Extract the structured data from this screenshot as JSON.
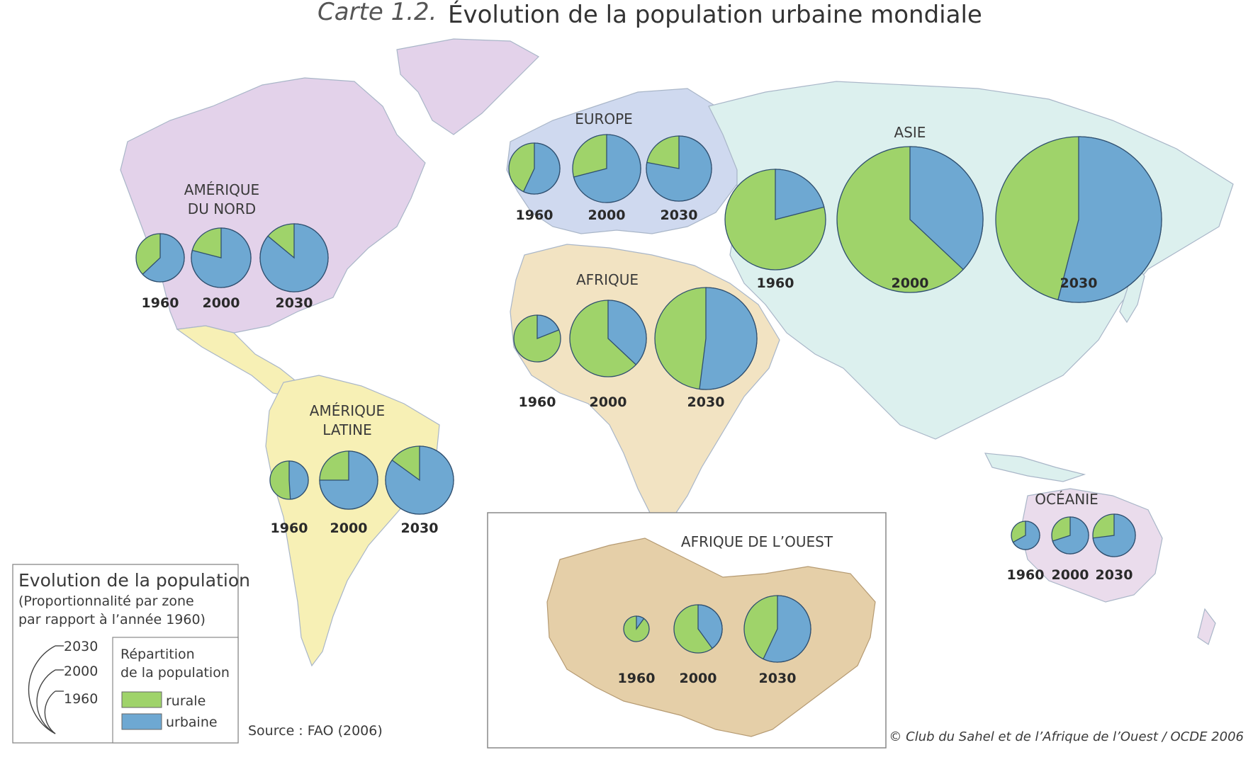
{
  "title": {
    "prefix": "Carte 1.2.",
    "main": "Évolution de la population urbaine mondiale"
  },
  "colors": {
    "rural": "#9fd36a",
    "urbain": "#6ea8d2",
    "pie_stroke": "#2f4f6f",
    "north_america": "#e3d2ea",
    "latin_america": "#f7f0b5",
    "europe": "#cfd9ef",
    "africa": "#f2e3c2",
    "west_africa": "#e5cfa8",
    "asia": "#dcf0ee",
    "oceania": "#eadcec"
  },
  "regions": [
    {
      "name": "AMÉRIQUE DU NORD",
      "lines": [
        "AMÉRIQUE",
        "DU NORD"
      ],
      "pies": [
        {
          "year": "1960",
          "urban_share": 0.63
        },
        {
          "year": "2000",
          "urban_share": 0.79
        },
        {
          "year": "2030",
          "urban_share": 0.86
        }
      ]
    },
    {
      "name": "AMÉRIQUE LATINE",
      "lines": [
        "AMÉRIQUE",
        "LATINE"
      ],
      "pies": [
        {
          "year": "1960",
          "urban_share": 0.49
        },
        {
          "year": "2000",
          "urban_share": 0.75
        },
        {
          "year": "2030",
          "urban_share": 0.85
        }
      ]
    },
    {
      "name": "EUROPE",
      "lines": [
        "EUROPE"
      ],
      "pies": [
        {
          "year": "1960",
          "urban_share": 0.57
        },
        {
          "year": "2000",
          "urban_share": 0.71
        },
        {
          "year": "2030",
          "urban_share": 0.78
        }
      ]
    },
    {
      "name": "AFRIQUE",
      "lines": [
        "AFRIQUE"
      ],
      "pies": [
        {
          "year": "1960",
          "urban_share": 0.19
        },
        {
          "year": "2000",
          "urban_share": 0.37
        },
        {
          "year": "2030",
          "urban_share": 0.52
        }
      ]
    },
    {
      "name": "ASIE",
      "lines": [
        "ASIE"
      ],
      "pies": [
        {
          "year": "1960",
          "urban_share": 0.21
        },
        {
          "year": "2000",
          "urban_share": 0.37
        },
        {
          "year": "2030",
          "urban_share": 0.54
        }
      ]
    },
    {
      "name": "OCÉANIE",
      "lines": [
        "OCÉANIE"
      ],
      "pies": [
        {
          "year": "1960",
          "urban_share": 0.67
        },
        {
          "year": "2000",
          "urban_share": 0.7
        },
        {
          "year": "2030",
          "urban_share": 0.73
        }
      ]
    },
    {
      "name": "AFRIQUE DE L'OUEST",
      "lines": [
        "AFRIQUE DE L’OUEST"
      ],
      "pies": [
        {
          "year": "1960",
          "urban_share": 0.1
        },
        {
          "year": "2000",
          "urban_share": 0.4
        },
        {
          "year": "2030",
          "urban_share": 0.57
        }
      ]
    }
  ],
  "legend": {
    "title": "Evolution de la population",
    "subtitle_line1": "(Proportionnalité par zone",
    "subtitle_line2": "par rapport à l’année 1960)",
    "sizes": [
      "2030",
      "2000",
      "1960"
    ],
    "distribution_title_line1": "Répartition",
    "distribution_title_line2": "de la population",
    "rural_label": "rurale",
    "urban_label": "urbaine"
  },
  "source": "Source : FAO (2006)",
  "copyright": "© Club du Sahel et de l’Afrique de l’Ouest / OCDE 2006"
}
